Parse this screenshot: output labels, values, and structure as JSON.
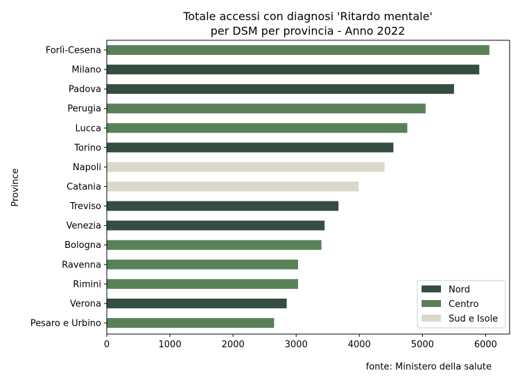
{
  "chart_data": {
    "type": "bar",
    "orientation": "horizontal",
    "title_line1": "Totale accessi con diagnosi 'Ritardo mentale'",
    "title_line2": "per DSM per provincia - Anno 2022",
    "ylabel": "Province",
    "xlabel": "",
    "xlim": [
      0,
      6380
    ],
    "xticks": [
      0,
      1000,
      2000,
      3000,
      4000,
      5000,
      6000
    ],
    "categories": [
      "Forlì-Cesena",
      "Milano",
      "Padova",
      "Perugia",
      "Lucca",
      "Torino",
      "Napoli",
      "Catania",
      "Treviso",
      "Venezia",
      "Bologna",
      "Ravenna",
      "Rimini",
      "Verona",
      "Pesaro e Urbino"
    ],
    "values": [
      6060,
      5900,
      5500,
      5050,
      4760,
      4540,
      4400,
      3990,
      3670,
      3450,
      3400,
      3030,
      3030,
      2850,
      2650
    ],
    "groups": [
      "Centro",
      "Nord",
      "Nord",
      "Centro",
      "Centro",
      "Nord",
      "Sud e Isole",
      "Sud e Isole",
      "Nord",
      "Nord",
      "Centro",
      "Centro",
      "Centro",
      "Nord",
      "Centro"
    ],
    "legend": {
      "placement": "lower-right",
      "entries": [
        {
          "name": "Nord",
          "color": "#344e41"
        },
        {
          "name": "Centro",
          "color": "#588157"
        },
        {
          "name": "Sud e Isole",
          "color": "#dad7cd"
        }
      ]
    },
    "source_note": "fonte: Ministero della salute",
    "grid": false
  }
}
